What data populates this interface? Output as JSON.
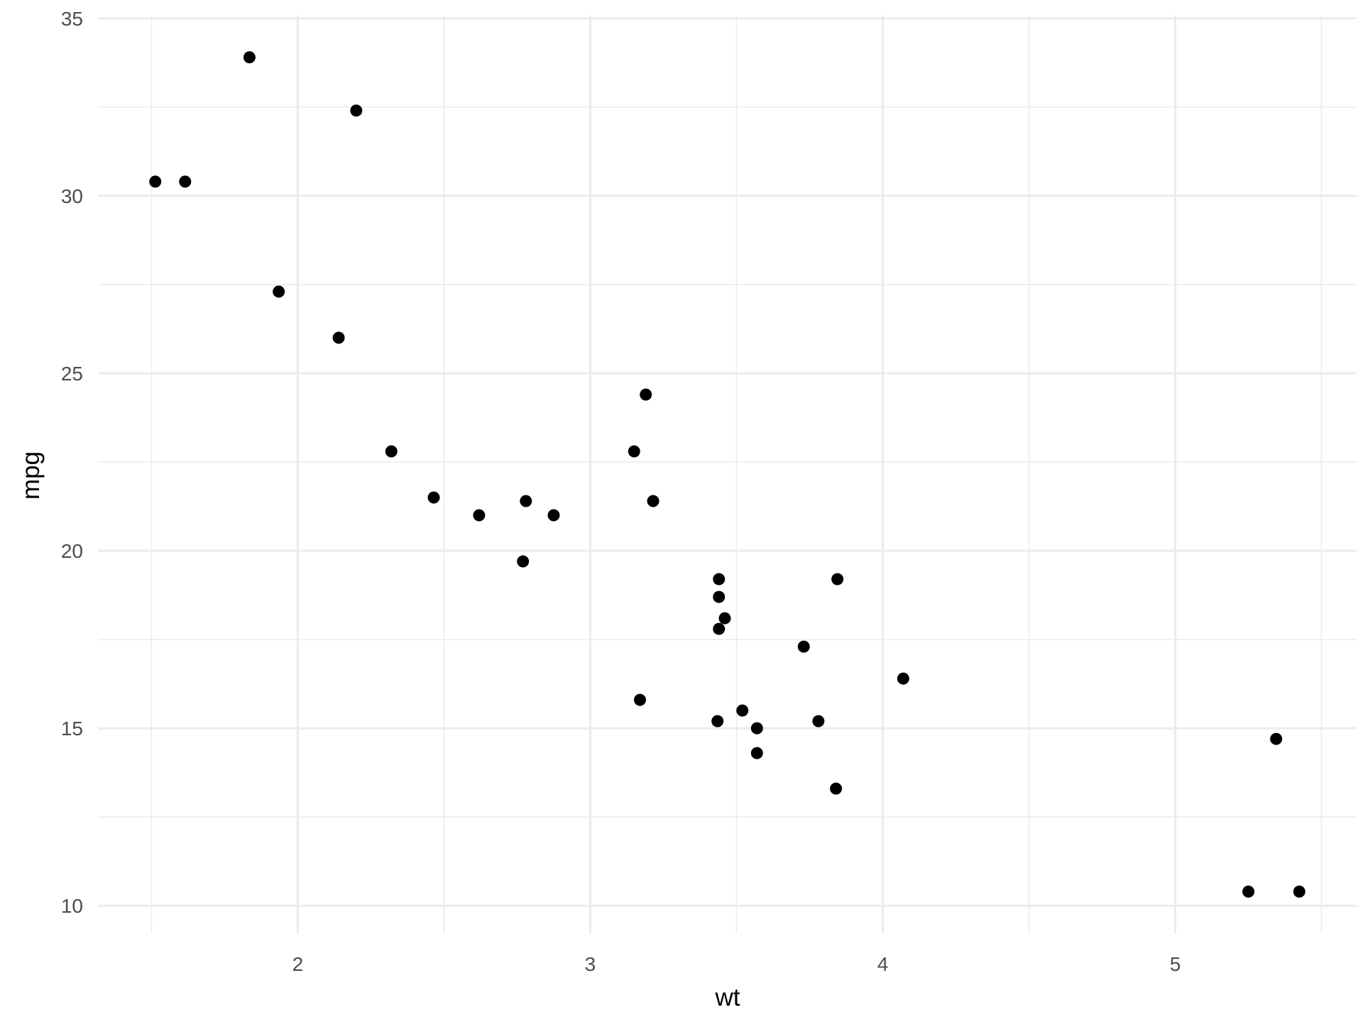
{
  "chart_data": {
    "type": "scatter",
    "title": "",
    "xlabel": "wt",
    "ylabel": "mpg",
    "xlim": [
      1.317,
      5.62
    ],
    "ylim": [
      9.225,
      35.075
    ],
    "x_ticks": [
      2,
      3,
      4,
      5
    ],
    "y_ticks": [
      10,
      15,
      20,
      25,
      30,
      35
    ],
    "x_tick_labels": [
      "2",
      "3",
      "4",
      "5"
    ],
    "y_tick_labels": [
      "10",
      "15",
      "20",
      "25",
      "30",
      "35"
    ],
    "grid": true,
    "point_color": "#000000",
    "grid_color": "#ebebeb",
    "points": [
      {
        "x": 2.62,
        "y": 21.0
      },
      {
        "x": 2.875,
        "y": 21.0
      },
      {
        "x": 2.32,
        "y": 22.8
      },
      {
        "x": 3.215,
        "y": 21.4
      },
      {
        "x": 3.44,
        "y": 18.7
      },
      {
        "x": 3.46,
        "y": 18.1
      },
      {
        "x": 3.57,
        "y": 14.3
      },
      {
        "x": 3.19,
        "y": 24.4
      },
      {
        "x": 3.15,
        "y": 22.8
      },
      {
        "x": 3.44,
        "y": 19.2
      },
      {
        "x": 3.44,
        "y": 17.8
      },
      {
        "x": 4.07,
        "y": 16.4
      },
      {
        "x": 3.73,
        "y": 17.3
      },
      {
        "x": 3.78,
        "y": 15.2
      },
      {
        "x": 5.25,
        "y": 10.4
      },
      {
        "x": 5.424,
        "y": 10.4
      },
      {
        "x": 5.345,
        "y": 14.7
      },
      {
        "x": 2.2,
        "y": 32.4
      },
      {
        "x": 1.615,
        "y": 30.4
      },
      {
        "x": 1.835,
        "y": 33.9
      },
      {
        "x": 2.465,
        "y": 21.5
      },
      {
        "x": 3.52,
        "y": 15.5
      },
      {
        "x": 3.435,
        "y": 15.2
      },
      {
        "x": 3.84,
        "y": 13.3
      },
      {
        "x": 3.845,
        "y": 19.2
      },
      {
        "x": 1.935,
        "y": 27.3
      },
      {
        "x": 2.14,
        "y": 26.0
      },
      {
        "x": 1.513,
        "y": 30.4
      },
      {
        "x": 3.17,
        "y": 15.8
      },
      {
        "x": 2.77,
        "y": 19.7
      },
      {
        "x": 3.57,
        "y": 15.0
      },
      {
        "x": 2.78,
        "y": 21.4
      }
    ]
  }
}
